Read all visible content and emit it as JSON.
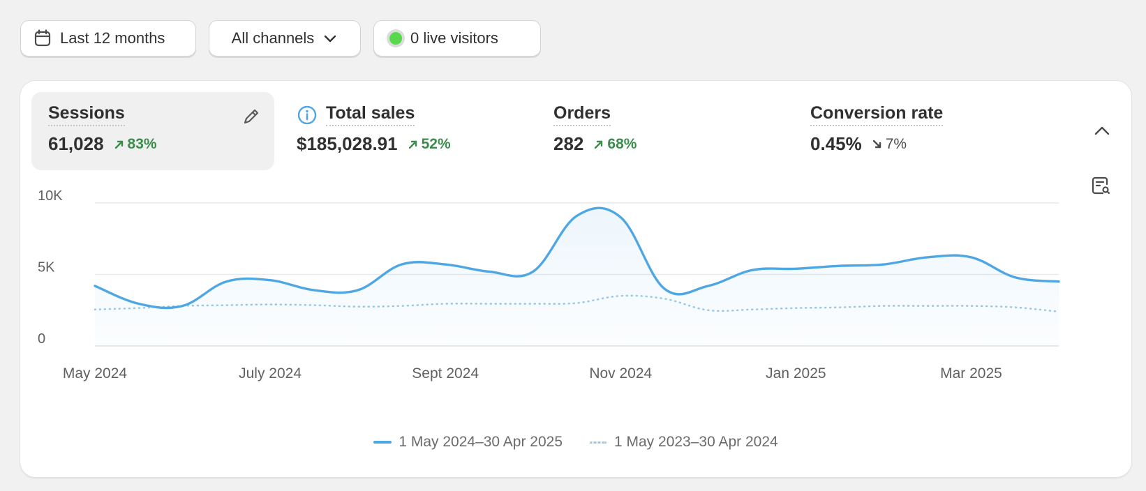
{
  "toolbar": {
    "date_range_label": "Last 12 months",
    "channels_label": "All channels",
    "live_visitors_label": "0 live visitors"
  },
  "metrics": [
    {
      "title": "Sessions",
      "value": "61,028",
      "change": "83%",
      "direction": "up"
    },
    {
      "title": "Total sales",
      "value": "$185,028.91",
      "change": "52%",
      "direction": "up"
    },
    {
      "title": "Orders",
      "value": "282",
      "change": "68%",
      "direction": "up"
    },
    {
      "title": "Conversion rate",
      "value": "0.45%",
      "change": "7%",
      "direction": "down"
    }
  ],
  "colors": {
    "current_series": "#4ea7e3",
    "previous_series": "#9bc9e6",
    "up": "#3c8c4c",
    "live_dot": "#58d84c"
  },
  "chart_data": {
    "type": "line",
    "title": "Sessions",
    "ylim": [
      0,
      10000
    ],
    "yticks": [
      {
        "value": 0,
        "label": "0"
      },
      {
        "value": 5000,
        "label": "5K"
      },
      {
        "value": 10000,
        "label": "10K"
      }
    ],
    "x": [
      0,
      0.5,
      1,
      1.5,
      2,
      2.5,
      3,
      3.5,
      4,
      4.5,
      5,
      5.5,
      6,
      6.5,
      7,
      7.5,
      8,
      8.5,
      9,
      9.5,
      10,
      10.5,
      11
    ],
    "xticks": [
      {
        "value": 0,
        "label": "May 2024"
      },
      {
        "value": 2,
        "label": "July 2024"
      },
      {
        "value": 4,
        "label": "Sept 2024"
      },
      {
        "value": 6,
        "label": "Nov 2024"
      },
      {
        "value": 8,
        "label": "Jan 2025"
      },
      {
        "value": 10,
        "label": "Mar 2025"
      }
    ],
    "xlim": [
      0,
      11
    ],
    "series": [
      {
        "name": "1 May 2024–30 Apr 2025",
        "style": "solid",
        "values": [
          4200,
          2950,
          2800,
          4500,
          4600,
          3900,
          3900,
          5700,
          5700,
          5200,
          5200,
          9100,
          9000,
          4000,
          4200,
          5300,
          5400,
          5600,
          5700,
          6200,
          6200,
          4800,
          4500
        ]
      },
      {
        "name": "1 May 2023–30 Apr 2024",
        "style": "dotted",
        "values": [
          2550,
          2650,
          2800,
          2850,
          2900,
          2850,
          2750,
          2800,
          2950,
          2950,
          2950,
          3000,
          3500,
          3300,
          2500,
          2550,
          2650,
          2700,
          2800,
          2800,
          2800,
          2700,
          2400
        ]
      }
    ]
  }
}
